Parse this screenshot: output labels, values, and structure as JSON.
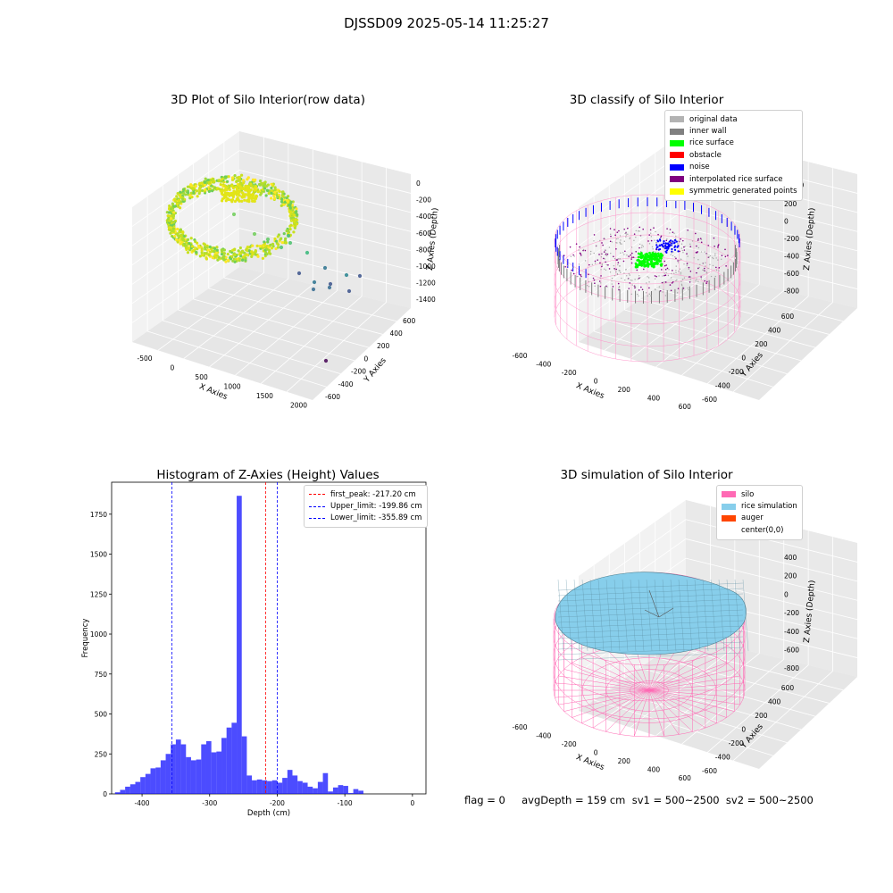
{
  "figure_title": "DJSSD09 2025-05-14 11:25:27",
  "chart_data": [
    {
      "type": "scatter3d",
      "title": "3D Plot of Silo Interior(row data)",
      "xlabel": "X Axies",
      "ylabel": "Y Axies",
      "zlabel": "Z Axies (Depth)",
      "x_ticks": [
        "-500",
        "0",
        "500",
        "1000",
        "1500",
        "2000"
      ],
      "y_ticks": [
        "-600",
        "-400",
        "-200",
        "0",
        "200",
        "400",
        "600"
      ],
      "z_ticks": [
        "0",
        "-200",
        "-400",
        "-600",
        "-800",
        "-1000",
        "-1200",
        "-1400"
      ],
      "colormap": "viridis",
      "series": [
        {
          "name": "ring point cloud",
          "description": "dense ring of points near z≈-200"
        },
        {
          "name": "scattered outliers",
          "description": "sparse points extending toward x≈1600"
        }
      ]
    },
    {
      "type": "scatter3d",
      "title": "3D classify of Silo Interior",
      "xlabel": "X Axies",
      "ylabel": "Y Axies",
      "zlabel": "Z Axies (Depth)",
      "x_ticks": [
        "-600",
        "-400",
        "-200",
        "0",
        "200",
        "400",
        "600"
      ],
      "y_ticks": [
        "-600",
        "-400",
        "-200",
        "0",
        "200",
        "400",
        "600"
      ],
      "z_ticks": [
        "200",
        "0",
        "-200",
        "-400",
        "-600",
        "-800"
      ],
      "z_hidden_tick": "400",
      "legend": [
        {
          "label": "original data",
          "color": "#b3b3b3"
        },
        {
          "label": "inner wall",
          "color": "#808080"
        },
        {
          "label": "rice surface",
          "color": "#00ff00"
        },
        {
          "label": "obstacle",
          "color": "#ff0000"
        },
        {
          "label": "noise",
          "color": "#0000ff"
        },
        {
          "label": "interpolated rice surface",
          "color": "#800080"
        },
        {
          "label": "symmetric generated points",
          "color": "#ffff00"
        }
      ]
    },
    {
      "type": "bar",
      "title": "Histogram of Z-Axies (Height) Values",
      "xlabel": "Depth (cm)",
      "ylabel": "Frequency",
      "xlim": [
        -445,
        20
      ],
      "ylim": [
        0,
        1950
      ],
      "bin_width": 7.5,
      "bin_start": -440,
      "x_ticks": [
        -400,
        -300,
        -200,
        -100,
        0
      ],
      "y_ticks": [
        0,
        250,
        500,
        750,
        1000,
        1250,
        1500,
        1750
      ],
      "values": [
        10,
        25,
        45,
        60,
        75,
        105,
        125,
        160,
        165,
        210,
        250,
        310,
        340,
        310,
        230,
        210,
        215,
        310,
        330,
        260,
        265,
        350,
        415,
        445,
        1865,
        360,
        115,
        85,
        90,
        85,
        80,
        85,
        70,
        100,
        150,
        115,
        80,
        70,
        45,
        35,
        75,
        130,
        15,
        40,
        55,
        50,
        5,
        30,
        20
      ],
      "color": "#0000ff",
      "lines": [
        {
          "label": "first_peak: -217.20 cm",
          "value": -217.2,
          "color": "#ff0000"
        },
        {
          "label": "Upper_limit: -199.86 cm",
          "value": -199.86,
          "color": "#0000ff"
        },
        {
          "label": "Lower_limit: -355.89 cm",
          "value": -355.89,
          "color": "#0000ff"
        }
      ]
    },
    {
      "type": "surface3d",
      "title": "3D simulation of Silo Interior",
      "xlabel": "X Axies",
      "ylabel": "Y Axies",
      "zlabel": "Z Axies (Depth)",
      "x_ticks": [
        "-600",
        "-400",
        "-200",
        "0",
        "200",
        "400",
        "600"
      ],
      "y_ticks": [
        "-600",
        "-400",
        "-200",
        "0",
        "200",
        "400",
        "600"
      ],
      "z_ticks": [
        "400",
        "200",
        "0",
        "-200",
        "-400",
        "-600",
        "-800"
      ],
      "legend": [
        {
          "label": "silo",
          "color": "#ff69b4"
        },
        {
          "label": "rice simulation",
          "color": "#87ceeb"
        },
        {
          "label": "auger",
          "color": "#ff4500"
        },
        {
          "label": "center(0,0)",
          "color": "#ffffff"
        }
      ]
    }
  ],
  "footer": "flag = 0     avgDepth = 159 cm  sv1 = 500~2500  sv2 = 500~2500"
}
